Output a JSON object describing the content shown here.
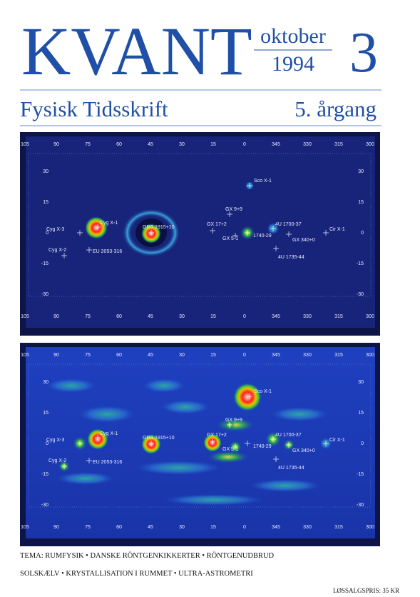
{
  "header": {
    "title": "KVANT",
    "month": "oktober",
    "year": "1994",
    "issue": "3",
    "subtitle": "Fysisk Tidsskrift",
    "volume": "5. årgang"
  },
  "sky_map": {
    "longitudes": [
      "105",
      "90",
      "75",
      "60",
      "45",
      "30",
      "15",
      "0",
      "345",
      "330",
      "315",
      "300"
    ],
    "latitudes": [
      "30",
      "15",
      "0",
      "-15",
      "-30"
    ],
    "sources": [
      "Sco X-1",
      "GX 9+9",
      "GX 17+2",
      "4U 1700-37",
      "Cir X-1",
      "GX 5-1",
      "1740-29",
      "GX 340+0",
      "4U 1735-44",
      "Cyg X-3",
      "Cyg X-1",
      "GRS 1915+10",
      "Cyg X-2",
      "EU 2053-316"
    ]
  },
  "footer": {
    "topics": [
      "TEMA: RUMFYSIK • DANSKE RÖNTGENKIKKERTER • RÖNTGENUDBRUD",
      "SOLSKÆLV • KRYSTALLISATION I RUMMET • ULTRA-ASTROMETRI"
    ],
    "price": "LØSSALGSPRIS: 35 KR"
  }
}
